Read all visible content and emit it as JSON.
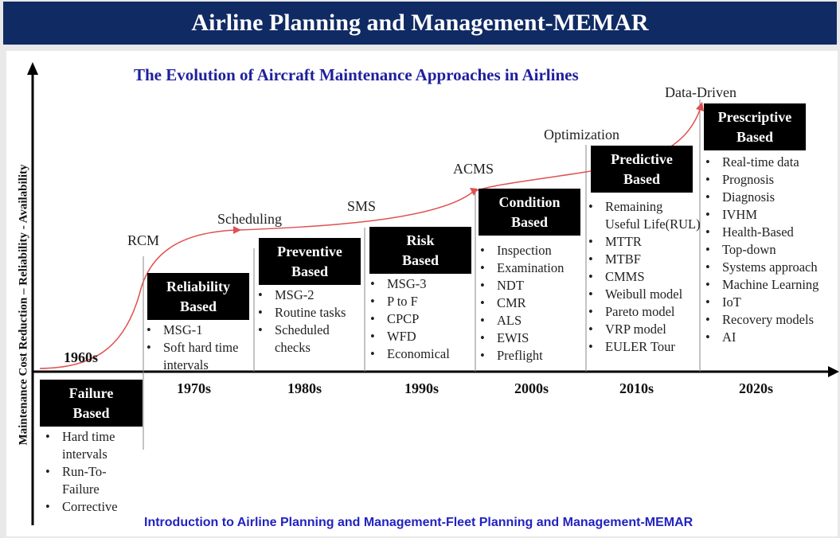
{
  "header": {
    "title": "Airline Planning and Management-MEMAR"
  },
  "diagram": {
    "subtitle": "The Evolution of Aircraft Maintenance Approaches in Airlines",
    "y_axis_label": "Maintenance Cost Reduction – Reliability - Availability",
    "footer": "Introduction to Airline Planning and Management-Fleet Planning and Management-MEMAR",
    "eras": [
      {
        "decade": "1960s",
        "box": "Failure\nBased",
        "items": [
          "Hard time intervals",
          "Run-To-Failure",
          "Corrective"
        ]
      },
      {
        "decade": "1970s",
        "box": "Reliability\nBased",
        "items": [
          "MSG-1",
          "Soft hard time intervals"
        ]
      },
      {
        "decade": "1980s",
        "box": "Preventive\nBased",
        "items": [
          "MSG-2",
          "Routine tasks",
          "Scheduled checks"
        ]
      },
      {
        "decade": "1990s",
        "box": "Risk\nBased",
        "items": [
          "MSG-3",
          "P to F",
          "CPCP",
          "WFD",
          "Economical"
        ]
      },
      {
        "decade": "2000s",
        "box": "Condition\nBased",
        "items": [
          "Inspection",
          "Examination",
          "NDT",
          "CMR",
          "ALS",
          "EWIS",
          "Preflight"
        ]
      },
      {
        "decade": "2010s",
        "box": "Predictive\nBased",
        "items": [
          "Remaining Useful Life(RUL)",
          "MTTR",
          "MTBF",
          "CMMS",
          "Weibull model",
          "Pareto model",
          "VRP model",
          "EULER Tour"
        ]
      },
      {
        "decade": "2020s",
        "box": "Prescriptive\nBased",
        "items": [
          "Real-time data",
          "Prognosis",
          "Diagnosis",
          "IVHM",
          "Health-Based",
          "Top-down",
          "Systems approach",
          "Machine Learning",
          "IoT",
          "Recovery models",
          "AI"
        ]
      }
    ],
    "milestones": [
      "RCM",
      "Scheduling",
      "SMS",
      "ACMS",
      "Optimization",
      "Data-Driven"
    ],
    "colors": {
      "banner": "#102a63",
      "curve": "#e05050",
      "subtitle": "#1f1f9e",
      "footer": "#2222c0"
    }
  }
}
